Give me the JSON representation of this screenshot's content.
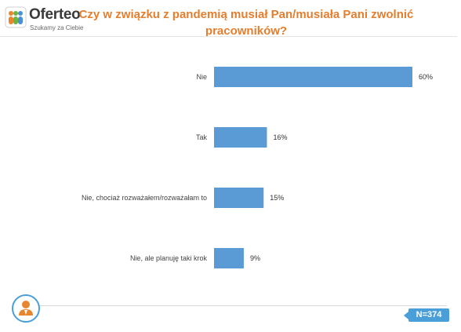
{
  "brand": {
    "name": "Oferteo",
    "tagline": "Szukamy za Ciebie"
  },
  "colors": {
    "accent": "#e37e2f",
    "bar": "#5b9bd5",
    "badge": "#4a9fd8",
    "brand_logo": [
      "#e8852f",
      "#6cb33f",
      "#4a90d9"
    ]
  },
  "icons": {
    "user": "user-icon",
    "logo": "oferteo-logo-icon"
  },
  "sample_badge": "N=374",
  "chart_data": {
    "type": "bar",
    "orientation": "horizontal",
    "title": "Czy w związku z pandemią musiał Pan/musiała Pani zwolnić pracowników?",
    "categories": [
      "Nie",
      "Tak",
      "Nie, chociaż rozważałem/rozważałam to",
      "Nie, ale planuję taki krok"
    ],
    "values": [
      60,
      16,
      15,
      9
    ],
    "value_labels": [
      "60%",
      "16%",
      "15%",
      "9%"
    ],
    "xlim": [
      0,
      100
    ],
    "grid": false,
    "legend": "none"
  }
}
